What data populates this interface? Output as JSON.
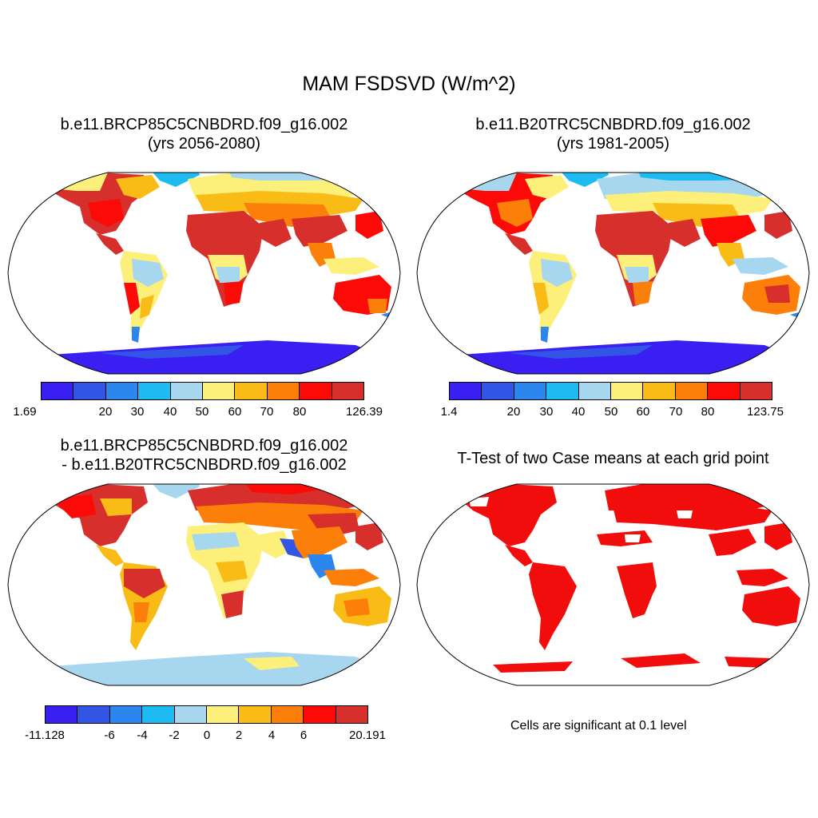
{
  "title": "MAM FSDSVD (W/m^2)",
  "panels": {
    "top_left": {
      "line1": "b.e11.BRCP85C5CNBDRD.f09_g16.002",
      "line2": "(yrs 2056-2080)",
      "colorbar": {
        "labels": [
          "1.69",
          "20",
          "30",
          "40",
          "50",
          "60",
          "70",
          "80",
          "126.39"
        ]
      }
    },
    "top_right": {
      "line1": "b.e11.B20TRC5CNBDRD.f09_g16.002",
      "line2": "(yrs 1981-2005)",
      "colorbar": {
        "labels": [
          "1.4",
          "20",
          "30",
          "40",
          "50",
          "60",
          "70",
          "80",
          "123.75"
        ]
      }
    },
    "bottom_left": {
      "line1": "b.e11.BRCP85C5CNBDRD.f09_g16.002",
      "line2": "- b.e11.B20TRC5CNBDRD.f09_g16.002",
      "colorbar": {
        "labels": [
          "-11.128",
          "-6",
          "-4",
          "-2",
          "0",
          "2",
          "4",
          "6",
          "20.191"
        ]
      }
    },
    "bottom_right": {
      "line1": "T-Test of two Case means at each grid point",
      "note": "Cells are significant at 0.1 level"
    }
  },
  "palette": [
    "#3a1ff2",
    "#3355e6",
    "#2b86ee",
    "#1ebbf3",
    "#a7d6ef",
    "#fdf07a",
    "#f9bc17",
    "#fb7f09",
    "#fb0a07",
    "#d62f2c"
  ],
  "significance_color": "#f20d0d"
}
